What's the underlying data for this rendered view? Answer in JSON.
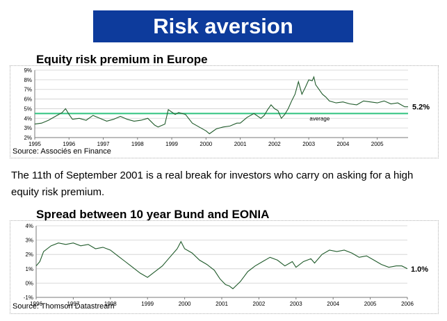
{
  "header": {
    "title": "Risk aversion"
  },
  "caption": "The 11th of September 2001 is a real break for investors who carry on asking for a high equity risk premium.",
  "colors": {
    "banner": "#0d3b9c",
    "series": "#1f5a2a",
    "average_line": "#2ec27e"
  },
  "chart_data": [
    {
      "type": "line",
      "title": "Equity risk premium in Europe",
      "source": "Source: Associés en Finance",
      "x_ticks": [
        "1995",
        "1996",
        "1997",
        "1998",
        "1999",
        "2000",
        "2001",
        "2002",
        "2003",
        "2004",
        "2005"
      ],
      "y_ticks": [
        "2%",
        "3%",
        "4%",
        "5%",
        "6%",
        "7%",
        "8%",
        "9%"
      ],
      "xlim": [
        1995,
        2005.9
      ],
      "ylim": [
        2,
        9
      ],
      "grid": true,
      "average": {
        "value": 4.5,
        "label": "average"
      },
      "end_label": "5.2%",
      "series": [
        {
          "x": [
            1995.0,
            1995.2,
            1995.4,
            1995.6,
            1995.8,
            1995.9,
            1996.0,
            1996.1,
            1996.3,
            1996.5,
            1996.7,
            1996.9,
            1997.1,
            1997.3,
            1997.5,
            1997.7,
            1997.9,
            1998.1,
            1998.3,
            1998.5,
            1998.6,
            1998.8,
            1998.9,
            1999.1,
            1999.2,
            1999.4,
            1999.6,
            1999.8,
            2000.0,
            2000.1,
            2000.3,
            2000.5,
            2000.7,
            2000.9,
            2001.0,
            2001.2,
            2001.4,
            2001.6,
            2001.7,
            2001.8,
            2001.9,
            2002.0,
            2002.1,
            2002.2,
            2002.3,
            2002.4,
            2002.5,
            2002.6,
            2002.7,
            2002.8,
            2002.9,
            2003.0,
            2003.1,
            2003.15,
            2003.2,
            2003.3,
            2003.4,
            2003.5,
            2003.6,
            2003.8,
            2004.0,
            2004.2,
            2004.4,
            2004.6,
            2004.8,
            2005.0,
            2005.2,
            2005.4,
            2005.6,
            2005.8,
            2005.9
          ],
          "y": [
            3.4,
            3.5,
            3.8,
            4.2,
            4.6,
            5.0,
            4.4,
            3.9,
            4.0,
            3.8,
            4.3,
            4.0,
            3.7,
            3.9,
            4.2,
            3.9,
            3.7,
            3.8,
            4.0,
            3.3,
            3.1,
            3.4,
            4.9,
            4.4,
            4.6,
            4.4,
            3.5,
            3.1,
            2.7,
            2.4,
            2.9,
            3.1,
            3.2,
            3.5,
            3.5,
            4.1,
            4.5,
            4.0,
            4.3,
            4.9,
            5.4,
            5.0,
            4.8,
            4.0,
            4.4,
            5.0,
            5.8,
            6.5,
            7.8,
            6.5,
            7.2,
            8.0,
            7.9,
            8.3,
            7.5,
            7.0,
            6.5,
            6.2,
            5.8,
            5.6,
            5.7,
            5.5,
            5.4,
            5.8,
            5.7,
            5.6,
            5.8,
            5.5,
            5.6,
            5.2,
            5.2
          ]
        }
      ]
    },
    {
      "type": "line",
      "title": "Spread between 10 year Bund and EONIA",
      "source": "Source: Thomson Datastream",
      "x_ticks": [
        "1996",
        "1997",
        "1998",
        "1999",
        "2000",
        "2001",
        "2002",
        "2003",
        "2004",
        "2005",
        "2006"
      ],
      "y_ticks": [
        "-1%",
        "0%",
        "1%",
        "2%",
        "3%",
        "4%"
      ],
      "xlim": [
        1996,
        2006
      ],
      "ylim": [
        -1,
        4
      ],
      "grid": true,
      "end_label": "1.0%",
      "series": [
        {
          "x": [
            1996.0,
            1996.1,
            1996.2,
            1996.4,
            1996.6,
            1996.8,
            1997.0,
            1997.2,
            1997.4,
            1997.6,
            1997.8,
            1998.0,
            1998.2,
            1998.4,
            1998.6,
            1998.8,
            1999.0,
            1999.2,
            1999.4,
            1999.6,
            1999.8,
            1999.9,
            2000.0,
            2000.2,
            2000.4,
            2000.6,
            2000.8,
            2000.95,
            2001.1,
            2001.2,
            2001.3,
            2001.5,
            2001.7,
            2001.9,
            2002.1,
            2002.3,
            2002.5,
            2002.7,
            2002.9,
            2003.0,
            2003.2,
            2003.4,
            2003.5,
            2003.7,
            2003.9,
            2004.1,
            2004.3,
            2004.5,
            2004.7,
            2004.9,
            2005.1,
            2005.3,
            2005.5,
            2005.7,
            2005.85,
            2006.0
          ],
          "y": [
            1.2,
            1.5,
            2.2,
            2.6,
            2.8,
            2.7,
            2.8,
            2.6,
            2.7,
            2.4,
            2.5,
            2.3,
            1.9,
            1.5,
            1.1,
            0.7,
            0.4,
            0.8,
            1.2,
            1.8,
            2.4,
            2.9,
            2.4,
            2.1,
            1.6,
            1.3,
            0.9,
            0.3,
            -0.1,
            -0.2,
            -0.4,
            0.1,
            0.8,
            1.2,
            1.5,
            1.8,
            1.6,
            1.2,
            1.5,
            1.1,
            1.5,
            1.7,
            1.4,
            2.0,
            2.3,
            2.2,
            2.3,
            2.1,
            1.8,
            1.9,
            1.6,
            1.3,
            1.1,
            1.2,
            1.2,
            1.0
          ]
        }
      ]
    }
  ]
}
